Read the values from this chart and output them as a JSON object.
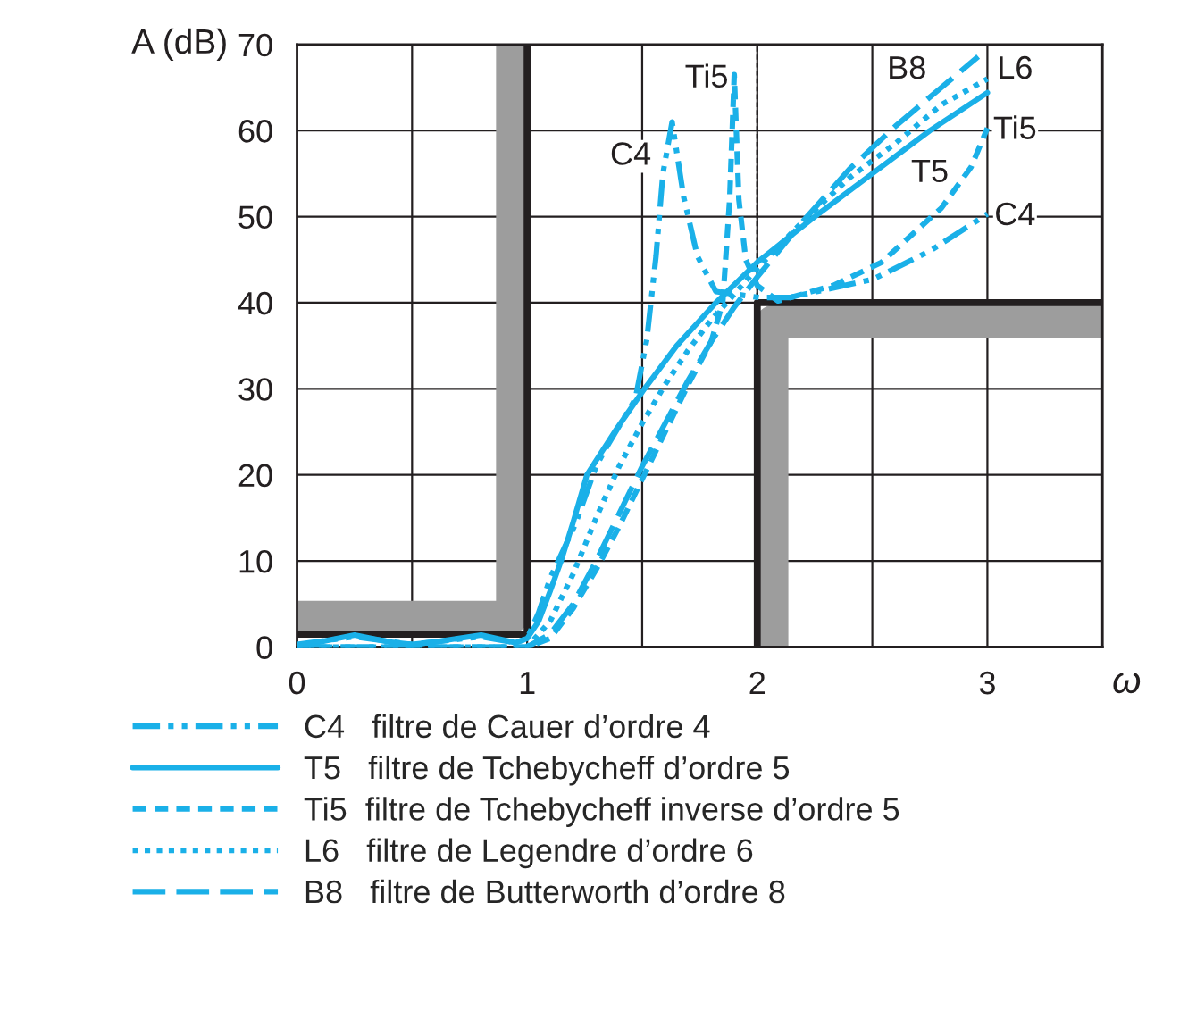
{
  "chart_data": {
    "type": "line",
    "ylabel": "A (dB)",
    "xlabel": "ω",
    "xlim": [
      0,
      3.5
    ],
    "ylim": [
      0,
      70
    ],
    "xticks": [
      0,
      {
        "value": 0.5,
        "label": null
      },
      1,
      {
        "value": 1.5,
        "label": null
      },
      2,
      {
        "value": 2.5,
        "label": null
      },
      3
    ],
    "yticks": [
      0,
      10,
      20,
      30,
      40,
      50,
      60,
      70
    ],
    "grid": true,
    "legend": "bottom",
    "ref_lines": [
      {
        "axis": "x",
        "value": 2,
        "label": null,
        "color": "#231f20",
        "line_style": "dashed"
      }
    ],
    "series": [
      {
        "type": "line",
        "color": "#9d9d9d",
        "line_style": "solid",
        "x": [
          0,
          0.935,
          0.935
        ],
        "values": [
          3.5,
          3.5,
          70
        ]
      },
      {
        "type": "line",
        "color": "#9d9d9d",
        "line_style": "solid",
        "x": [
          2.065,
          2.065,
          3.5
        ],
        "values": [
          0,
          37.8,
          37.8
        ]
      },
      {
        "type": "line",
        "color": "#231f20",
        "line_style": "solid",
        "x": [
          0,
          1,
          1
        ],
        "values": [
          1.5,
          1.5,
          70
        ]
      },
      {
        "type": "line",
        "color": "#231f20",
        "line_style": "solid",
        "x": [
          2,
          2,
          3.5
        ],
        "values": [
          0,
          40,
          40
        ]
      },
      {
        "name": "C4   filtre de Cauer d’ordre 4",
        "color": "#1ab0e8",
        "line_style": "dashdot",
        "x": [
          0,
          0.25,
          0.5,
          0.8,
          0.95,
          1,
          1.05,
          1.1,
          1.21,
          1.3,
          1.34,
          1.47,
          1.52,
          1.56,
          1.59,
          1.63,
          1.68,
          1.74,
          1.82,
          2.01,
          2.14,
          2.5,
          2.75,
          3
        ],
        "values": [
          0.3,
          1.2,
          0.3,
          1.2,
          0.5,
          1,
          4,
          8,
          14.3,
          21,
          23,
          28.8,
          35.7,
          45.4,
          55,
          61,
          52.3,
          45.4,
          41.3,
          40.6,
          40.6,
          42.7,
          46,
          50.3
        ]
      },
      {
        "name": "T5   filtre de Tchebycheff d’ordre 5",
        "color": "#1ab0e8",
        "line_style": "solid",
        "x": [
          0,
          0.1,
          0.25,
          0.4,
          0.5,
          0.6,
          0.8,
          0.9,
          0.95,
          1,
          1.05,
          1.1,
          1.15,
          1.2,
          1.26,
          1.38,
          1.51,
          1.65,
          1.82,
          2,
          2.25,
          2.5,
          2.75,
          3
        ],
        "values": [
          0,
          0.6,
          1.4,
          0.6,
          0.3,
          0.6,
          1.4,
          0.8,
          0.5,
          1,
          3,
          6.5,
          10.2,
          14.5,
          20,
          25,
          30,
          35,
          40,
          44.7,
          50,
          55,
          60,
          64.4
        ]
      },
      {
        "name": "Ti5  filtre de Tchebycheff inverse d’ordre 5",
        "color": "#1ab0e8",
        "line_style": "dashed",
        "x": [
          0,
          1,
          1.1,
          1.2,
          1.3,
          1.4,
          1.5,
          1.6,
          1.7,
          1.8,
          1.85,
          1.88,
          1.9,
          1.92,
          1.95,
          2,
          2.09,
          2.33,
          2.54,
          2.8,
          2.93,
          3
        ],
        "values": [
          0,
          0,
          1,
          4.5,
          9,
          14,
          19.5,
          25,
          30.5,
          35.5,
          40,
          52,
          66.5,
          52,
          45,
          42,
          40.2,
          42,
          44.7,
          51,
          55.8,
          60.3
        ]
      },
      {
        "name": "L6   filtre de Legendre d’ordre 6",
        "color": "#1ab0e8",
        "line_style": "dotted",
        "x": [
          0,
          1,
          1.1,
          1.2,
          1.3,
          1.4,
          1.5,
          1.6,
          1.7,
          1.8,
          1.9,
          2,
          2.2,
          2.4,
          2.6,
          2.8,
          3
        ],
        "values": [
          0,
          0,
          3,
          8.5,
          15,
          21,
          26,
          30.5,
          34.5,
          38,
          41,
          44,
          49.5,
          54.5,
          58.5,
          63,
          66
        ]
      },
      {
        "name": "B8   filtre de Butterworth d’ordre 8",
        "color": "#1ab0e8",
        "line_style": "longdash",
        "x": [
          0,
          1,
          1.1,
          1.2,
          1.3,
          1.4,
          1.5,
          1.6,
          1.7,
          1.8,
          1.9,
          2,
          2.2,
          2.4,
          2.6,
          2.8,
          2.96
        ],
        "values": [
          0,
          0,
          1.5,
          5,
          10,
          15.5,
          21,
          26,
          31,
          35.5,
          39.5,
          43,
          49.5,
          55.5,
          60.5,
          65,
          68.6
        ]
      }
    ],
    "annotations": [
      {
        "text": "C4",
        "x": 1.45,
        "y": 57
      },
      {
        "text": "Ti5",
        "x": 1.78,
        "y": 66
      },
      {
        "text": "B8",
        "x": 2.65,
        "y": 67
      },
      {
        "text": "L6",
        "x": 3.12,
        "y": 67
      },
      {
        "text": "Ti5",
        "x": 3.12,
        "y": 60
      },
      {
        "text": "T5",
        "x": 2.75,
        "y": 55
      },
      {
        "text": "C4",
        "x": 3.12,
        "y": 50
      }
    ]
  }
}
